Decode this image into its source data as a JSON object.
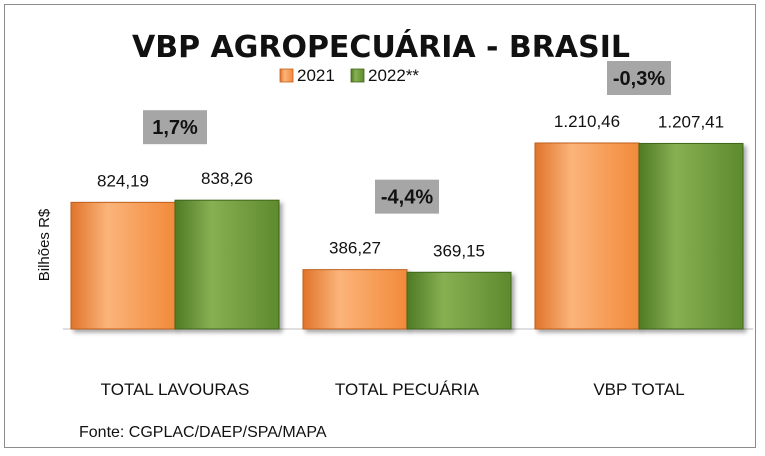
{
  "chart_data": {
    "type": "bar",
    "title": "VBP AGROPECUÁRIA - BRASIL",
    "ylabel": "Bilhões R$",
    "categories": [
      "TOTAL LAVOURAS",
      "TOTAL PECUÁRIA",
      "VBP TOTAL"
    ],
    "series": [
      {
        "name": "2021",
        "values": [
          824.19,
          386.27,
          1210.46
        ],
        "labels": [
          "824,19",
          "386,27",
          "1.210,46"
        ],
        "color": "#f79646"
      },
      {
        "name": "2022**",
        "values": [
          838.26,
          369.15,
          1207.41
        ],
        "labels": [
          "838,26",
          "369,15",
          "1.207,41"
        ],
        "color": "#6f9b3c"
      }
    ],
    "variation_labels": [
      "1,7%",
      "-4,4%",
      "-0,3%"
    ],
    "ylim": [
      0,
      1210.46
    ],
    "legend": "top-center",
    "grid": false
  },
  "source": "Fonte: CGPLAC/DAEP/SPA/MAPA",
  "colors": {
    "badge_bg": "#a6a6a6",
    "axis_line": "#bfbfbf"
  }
}
